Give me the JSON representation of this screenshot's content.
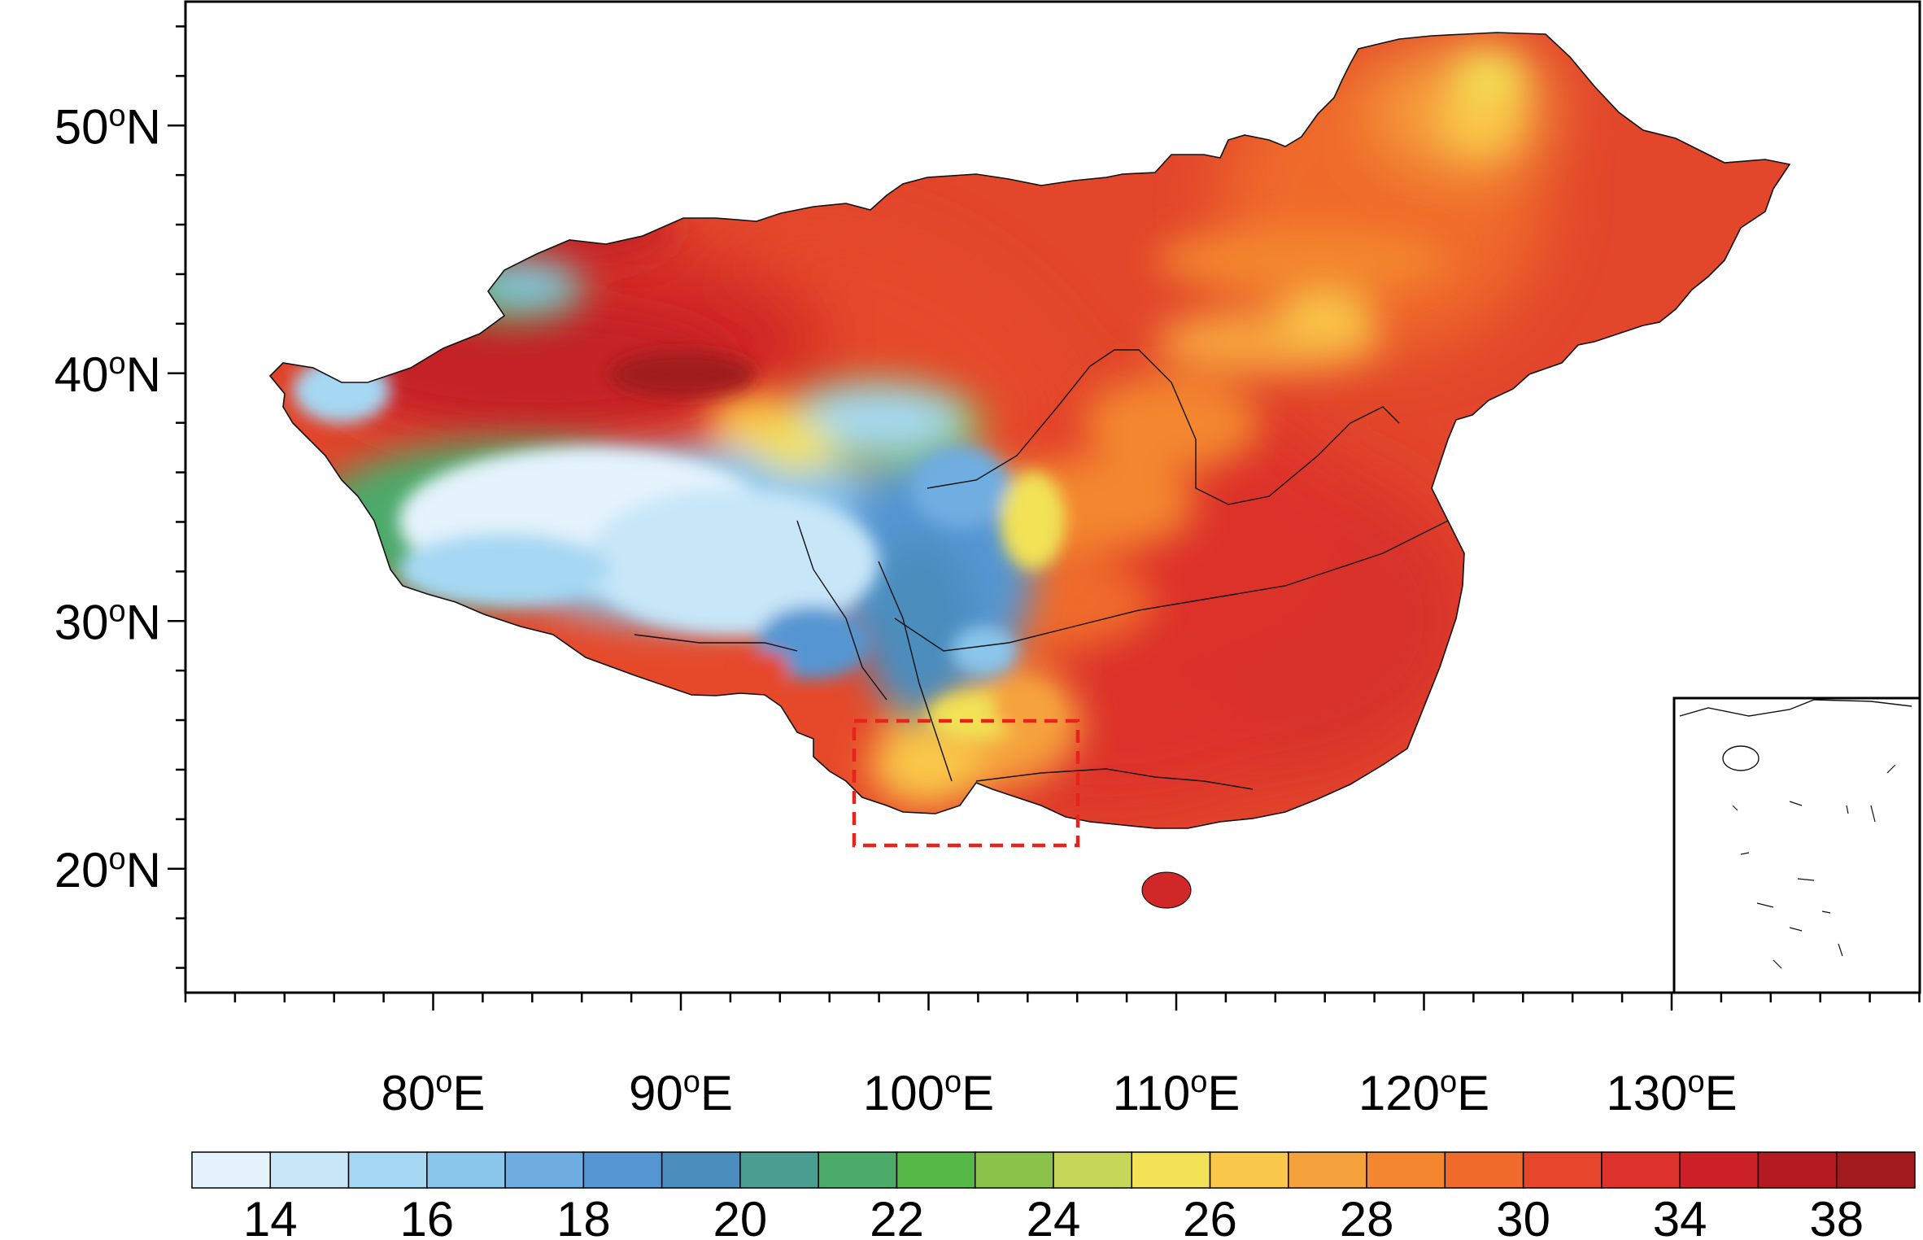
{
  "map": {
    "lat_ticks": [
      {
        "value": 50,
        "deg": "50",
        "suffix": "N"
      },
      {
        "value": 40,
        "deg": "40",
        "suffix": "N"
      },
      {
        "value": 30,
        "deg": "30",
        "suffix": "N"
      },
      {
        "value": 20,
        "deg": "20",
        "suffix": "N"
      }
    ],
    "lon_ticks": [
      {
        "value": 80,
        "deg": "80",
        "suffix": "E"
      },
      {
        "value": 90,
        "deg": "90",
        "suffix": "E"
      },
      {
        "value": 100,
        "deg": "100",
        "suffix": "E"
      },
      {
        "value": 110,
        "deg": "110",
        "suffix": "E"
      },
      {
        "value": 120,
        "deg": "120",
        "suffix": "E"
      },
      {
        "value": 130,
        "deg": "130",
        "suffix": "E"
      }
    ],
    "lon_range": [
      70,
      140
    ],
    "lat_range": [
      15,
      55
    ],
    "highlight_box": {
      "lon": [
        97,
        106
      ],
      "lat": [
        21,
        26
      ],
      "color": "#e8231e",
      "style": "dashed"
    },
    "inset": "South China Sea islands"
  },
  "colorbar": {
    "colors": [
      "#e5f3fc",
      "#c7e6f8",
      "#a6d8f3",
      "#8ac6ec",
      "#6fade1",
      "#5596d2",
      "#4b8dbd",
      "#4a9e8f",
      "#4caa6a",
      "#56b847",
      "#8bc34a",
      "#c5d658",
      "#f1e257",
      "#f9c74a",
      "#f6a23c",
      "#f3862f",
      "#ef6a2b",
      "#e6462b",
      "#dd322c",
      "#cc2027",
      "#b41a22",
      "#a01a1e"
    ],
    "labels": [
      "14",
      "16",
      "18",
      "20",
      "22",
      "24",
      "26",
      "28",
      "30",
      "34",
      "38"
    ]
  }
}
